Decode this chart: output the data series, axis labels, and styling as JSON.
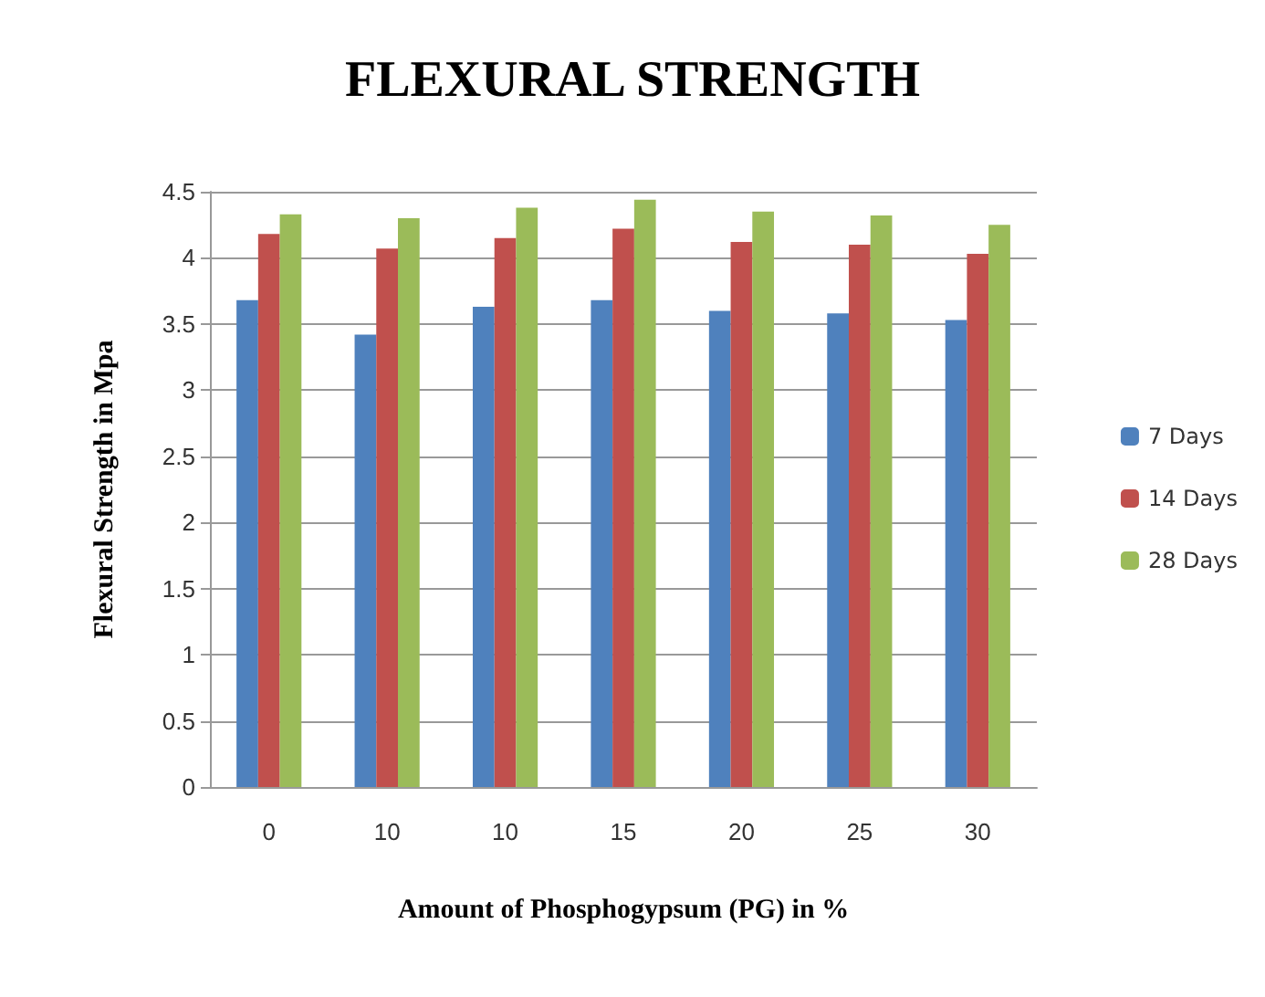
{
  "chart_data": {
    "type": "bar",
    "title": "FLEXURAL STRENGTH",
    "xlabel": "Amount of Phosphogypsum (PG) in %",
    "ylabel": "Flexural Strength in Mpa",
    "categories": [
      "0",
      "10",
      "10",
      "15",
      "20",
      "25",
      "30"
    ],
    "series": [
      {
        "name": "7 Days",
        "color": "#4f81bd",
        "values": [
          3.68,
          3.42,
          3.63,
          3.68,
          3.6,
          3.58,
          3.53
        ]
      },
      {
        "name": "14 Days",
        "color": "#c0504d",
        "values": [
          4.18,
          4.07,
          4.15,
          4.22,
          4.12,
          4.1,
          4.03
        ]
      },
      {
        "name": "28 Days",
        "color": "#9bbb59",
        "values": [
          4.33,
          4.3,
          4.38,
          4.44,
          4.35,
          4.32,
          4.25
        ]
      }
    ],
    "ylim": [
      0,
      4.5
    ],
    "yticks": [
      0,
      0.5,
      1,
      1.5,
      2,
      2.5,
      3,
      3.5,
      4,
      4.5
    ],
    "grid": "y",
    "legend": "right"
  }
}
